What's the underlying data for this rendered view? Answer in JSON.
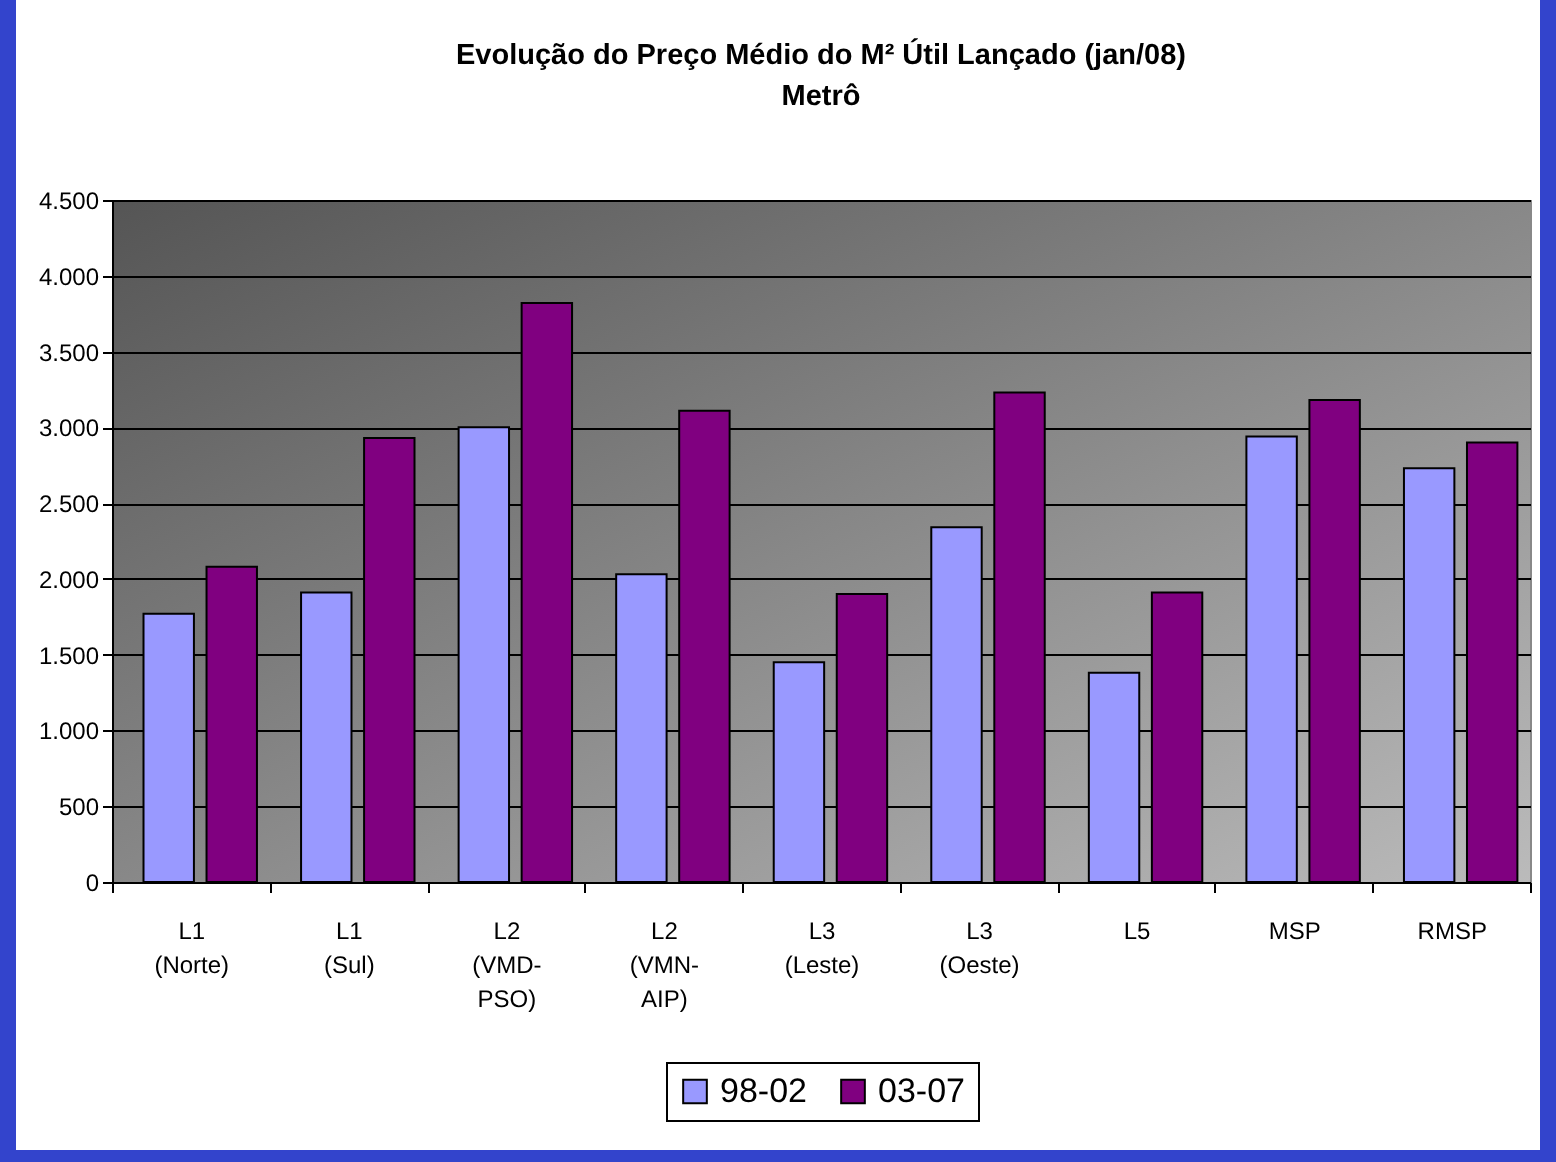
{
  "chart_data": {
    "type": "bar",
    "title": "Evolução do Preço Médio do M² Útil Lançado (jan/08)",
    "subtitle": "Metrô",
    "categories": [
      "L1 (Norte)",
      "L1 (Sul)",
      "L2 (VMD-PSO)",
      "L2 (VMN-AIP)",
      "L3 (Leste)",
      "L3 (Oeste)",
      "L5",
      "MSP",
      "RMSP"
    ],
    "series": [
      {
        "name": "98-02",
        "color": "#9999ff",
        "values": [
          1770,
          1910,
          3000,
          2030,
          1450,
          2340,
          1380,
          2940,
          2730
        ]
      },
      {
        "name": "03-07",
        "color": "#800080",
        "values": [
          2080,
          2930,
          3820,
          3110,
          1900,
          3230,
          1910,
          3180,
          2900
        ]
      }
    ],
    "ylim": [
      0,
      4500
    ],
    "yticks": [
      {
        "value": 0,
        "label": "0"
      },
      {
        "value": 500,
        "label": "500"
      },
      {
        "value": 1000,
        "label": "1.000"
      },
      {
        "value": 1500,
        "label": "1.500"
      },
      {
        "value": 2000,
        "label": "2.000"
      },
      {
        "value": 2500,
        "label": "2.500"
      },
      {
        "value": 3000,
        "label": "3.000"
      },
      {
        "value": 3500,
        "label": "3.500"
      },
      {
        "value": 4000,
        "label": "4.000"
      },
      {
        "value": 4500,
        "label": "4.500"
      }
    ],
    "grid": "y",
    "legend": "bottom"
  }
}
